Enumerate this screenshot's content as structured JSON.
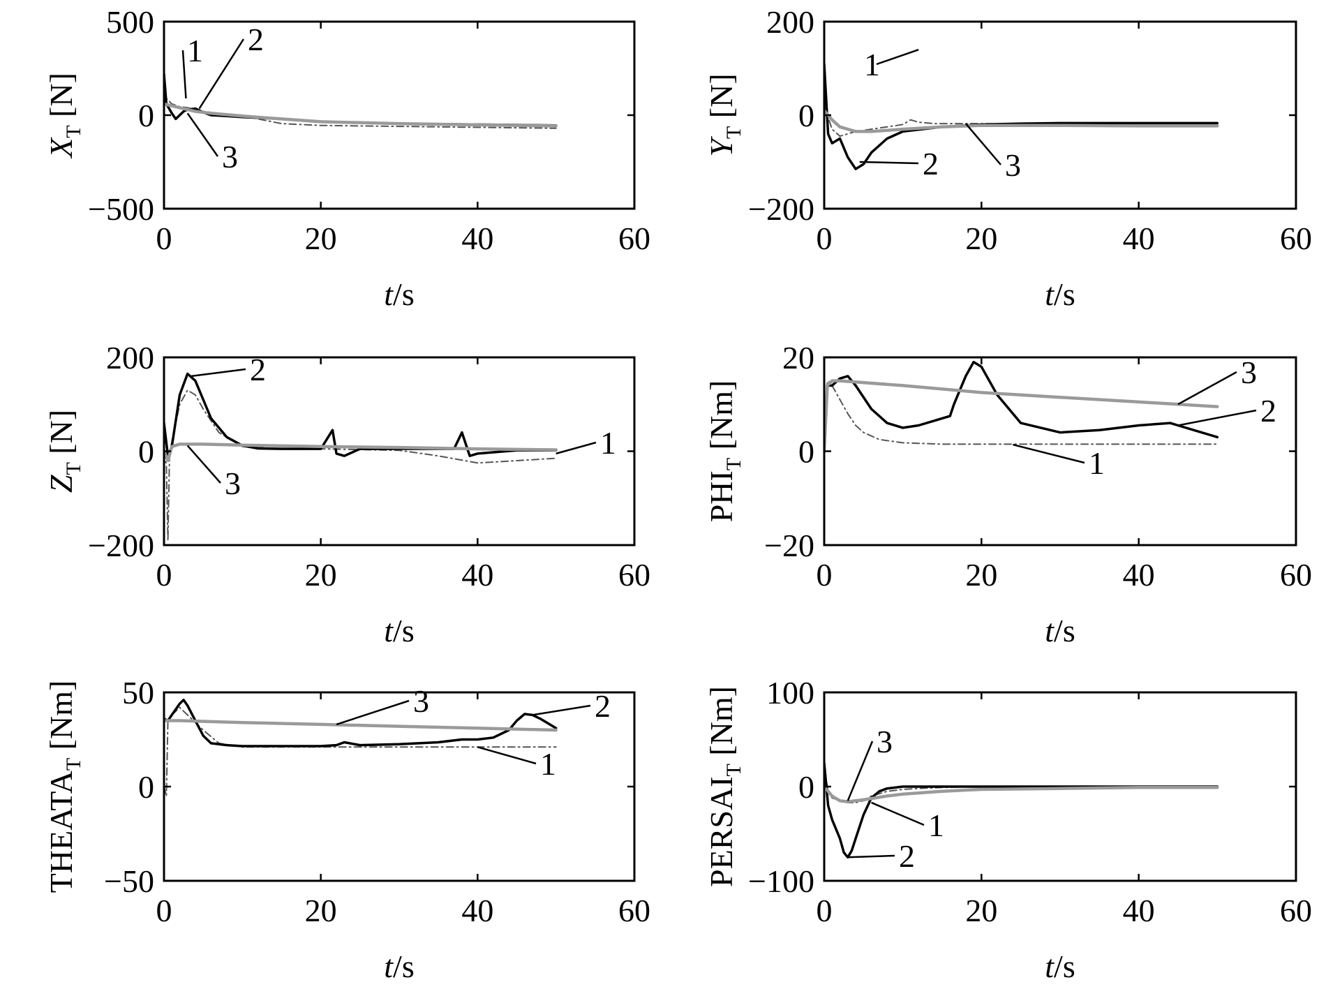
{
  "colors": {
    "curve1": "#555555",
    "curve2": "#000000",
    "curve3": "#9a9a9a"
  },
  "chart_data": [
    {
      "type": "line",
      "ylabel": {
        "main": "X",
        "sub": "T",
        "unit": " [N]",
        "italic": true
      },
      "xlabel": "t/s",
      "xlim": [
        0,
        60
      ],
      "ylim": [
        -500,
        500
      ],
      "xticks": [
        "0",
        "20",
        "40",
        "60"
      ],
      "yticks": [
        "500",
        "0",
        "-500"
      ],
      "series": [
        {
          "id": "1",
          "style": "dashdot",
          "x": [
            0,
            0.3,
            1,
            2,
            3,
            4,
            5,
            7,
            10,
            12,
            15,
            20,
            30,
            40,
            50
          ],
          "y": [
            230,
            90,
            60,
            45,
            40,
            30,
            20,
            10,
            0,
            -20,
            -45,
            -55,
            -60,
            -65,
            -70
          ]
        },
        {
          "id": "2",
          "style": "solid",
          "x": [
            0,
            0.3,
            1,
            1.5,
            2,
            2.5,
            3,
            4,
            5,
            6,
            8,
            10,
            15,
            20,
            30,
            40,
            50
          ],
          "y": [
            220,
            60,
            10,
            -20,
            0,
            20,
            30,
            35,
            15,
            0,
            -5,
            -10,
            -20,
            -35,
            -45,
            -50,
            -55
          ]
        },
        {
          "id": "3",
          "style": "solid",
          "x": [
            0,
            2,
            4,
            6,
            10,
            15,
            20,
            30,
            40,
            50
          ],
          "y": [
            60,
            40,
            20,
            10,
            -5,
            -20,
            -35,
            -45,
            -52,
            -58
          ]
        }
      ],
      "labels": [
        "1",
        "2",
        "3"
      ]
    },
    {
      "type": "line",
      "ylabel": {
        "main": "Y",
        "sub": "T",
        "unit": " [N]",
        "italic": true
      },
      "xlabel": "t/s",
      "xlim": [
        0,
        60
      ],
      "ylim": [
        -200,
        200
      ],
      "xticks": [
        "0",
        "20",
        "40",
        "60"
      ],
      "yticks": [
        "200",
        "0",
        "-200"
      ],
      "series": [
        {
          "id": "1",
          "style": "dashdot",
          "x": [
            0,
            1,
            2,
            3,
            4,
            6,
            8,
            10,
            11,
            12,
            14,
            20,
            30,
            40,
            50
          ],
          "y": [
            20,
            -30,
            -45,
            -40,
            -35,
            -30,
            -25,
            -20,
            -10,
            -15,
            -18,
            -18,
            -20,
            -22,
            -22
          ]
        },
        {
          "id": "2",
          "style": "solid",
          "x": [
            0,
            0.5,
            1,
            2,
            3,
            4,
            5,
            6,
            8,
            10,
            15,
            20,
            25,
            30,
            40,
            50
          ],
          "y": [
            110,
            -40,
            -60,
            -50,
            -90,
            -115,
            -105,
            -80,
            -50,
            -35,
            -25,
            -20,
            -18,
            -17,
            -17,
            -17
          ]
        },
        {
          "id": "3",
          "style": "solid",
          "x": [
            0,
            1,
            2,
            4,
            6,
            10,
            15,
            20,
            30,
            40,
            50
          ],
          "y": [
            10,
            -10,
            -25,
            -35,
            -35,
            -30,
            -25,
            -22,
            -22,
            -23,
            -23
          ]
        }
      ],
      "labels": [
        "1",
        "2",
        "3"
      ]
    },
    {
      "type": "line",
      "ylabel": {
        "main": "Z",
        "sub": "T",
        "unit": " [N]",
        "italic": true
      },
      "xlabel": "t/s",
      "xlim": [
        0,
        60
      ],
      "ylim": [
        -200,
        200
      ],
      "xticks": [
        "0",
        "20",
        "40",
        "60"
      ],
      "yticks": [
        "200",
        "0",
        "-200"
      ],
      "series": [
        {
          "id": "1",
          "style": "dashdot",
          "x": [
            0,
            0.3,
            0.5,
            0.7,
            1,
            2,
            3,
            4,
            5,
            7,
            10,
            15,
            20,
            30,
            35,
            40,
            45,
            50
          ],
          "y": [
            0,
            -30,
            -190,
            -10,
            20,
            100,
            130,
            120,
            90,
            40,
            10,
            5,
            5,
            2,
            -10,
            -25,
            -20,
            -15
          ]
        },
        {
          "id": "2",
          "style": "solid",
          "x": [
            0,
            0.5,
            1,
            2,
            3,
            4,
            5,
            6,
            8,
            10,
            12,
            15,
            20,
            21.5,
            22,
            23,
            25,
            30,
            37,
            38,
            39,
            40,
            45,
            50
          ],
          "y": [
            60,
            -10,
            10,
            120,
            165,
            150,
            110,
            70,
            30,
            12,
            6,
            5,
            5,
            45,
            -5,
            -10,
            5,
            5,
            5,
            40,
            -10,
            -5,
            2,
            2
          ]
        },
        {
          "id": "3",
          "style": "solid",
          "x": [
            0,
            0.5,
            1,
            2,
            5,
            10,
            20,
            30,
            40,
            50
          ],
          "y": [
            0,
            -20,
            10,
            15,
            15,
            13,
            10,
            8,
            5,
            3
          ]
        }
      ],
      "labels": [
        "2",
        "3",
        "1"
      ]
    },
    {
      "type": "line",
      "ylabel": {
        "main": "PHI",
        "sub": "T",
        "unit": " [Nm]",
        "italic": false
      },
      "xlabel": "t/s",
      "xlim": [
        0,
        60
      ],
      "ylim": [
        -20,
        20
      ],
      "xticks": [
        "0",
        "20",
        "40",
        "60"
      ],
      "yticks": [
        "20",
        "0",
        "-20"
      ],
      "series": [
        {
          "id": "1",
          "style": "dashdot",
          "x": [
            0,
            0.3,
            0.5,
            1,
            2,
            3,
            4,
            5,
            7,
            10,
            15,
            20,
            30,
            40,
            50
          ],
          "y": [
            0,
            14,
            15,
            14,
            11,
            8,
            5.5,
            4,
            2.5,
            1.8,
            1.5,
            1.5,
            1.5,
            1.5,
            1.5
          ]
        },
        {
          "id": "2",
          "style": "solid",
          "x": [
            0,
            0.4,
            1,
            2,
            3,
            4,
            6,
            8,
            10,
            12,
            14,
            16,
            16.5,
            17,
            18,
            19,
            20,
            22,
            25,
            30,
            35,
            40,
            44,
            45,
            50
          ],
          "y": [
            0,
            14,
            14,
            15.5,
            16,
            14,
            9,
            6,
            5,
            5.5,
            6.5,
            7.5,
            10,
            12,
            16,
            19,
            18,
            12,
            6,
            4,
            4.5,
            5.5,
            6,
            5.5,
            3
          ]
        },
        {
          "id": "3",
          "style": "solid",
          "x": [
            0,
            0.4,
            1,
            2,
            10,
            20,
            30,
            40,
            50
          ],
          "y": [
            0,
            14,
            15,
            15,
            14,
            12.5,
            11.5,
            10.5,
            9.5
          ]
        }
      ],
      "labels": [
        "3",
        "2",
        "1"
      ]
    },
    {
      "type": "line",
      "ylabel": {
        "main": "THEATA",
        "sub": "T",
        "unit": " [Nm]",
        "italic": false
      },
      "xlabel": "t/s",
      "xlim": [
        0,
        60
      ],
      "ylim": [
        -50,
        50
      ],
      "xticks": [
        "0",
        "20",
        "40",
        "60"
      ],
      "yticks": [
        "50",
        "0",
        "-50"
      ],
      "series": [
        {
          "id": "1",
          "style": "dashdot",
          "x": [
            0,
            0.3,
            0.5,
            1,
            2,
            3,
            5,
            7,
            10,
            20,
            30,
            40,
            50
          ],
          "y": [
            0,
            -5,
            35,
            38,
            42,
            38,
            30,
            23,
            21,
            21,
            21,
            21,
            21
          ]
        },
        {
          "id": "2",
          "style": "solid",
          "x": [
            0,
            0.5,
            1,
            2,
            2.5,
            3,
            4,
            5,
            6,
            8,
            10,
            15,
            20,
            22,
            23,
            25,
            30,
            35,
            38,
            40,
            42,
            44,
            45,
            46,
            47,
            48,
            50
          ],
          "y": [
            36,
            35,
            38,
            44,
            46,
            43,
            35,
            27,
            23,
            22,
            21.5,
            21.5,
            21.5,
            22,
            23.5,
            22,
            22.5,
            23.5,
            25,
            25,
            26,
            30,
            35,
            38.5,
            38,
            36,
            31
          ]
        },
        {
          "id": "3",
          "style": "solid",
          "x": [
            0,
            0.5,
            2,
            10,
            20,
            30,
            40,
            50
          ],
          "y": [
            35,
            35,
            35,
            34,
            33,
            32,
            31,
            30
          ]
        }
      ],
      "labels": [
        "3",
        "2",
        "1"
      ]
    },
    {
      "type": "line",
      "ylabel": {
        "main": "PERSAI",
        "sub": "T",
        "unit": " [Nm]",
        "italic": false
      },
      "xlabel": "t/s",
      "xlim": [
        0,
        60
      ],
      "ylim": [
        -100,
        100
      ],
      "xticks": [
        "0",
        "20",
        "40",
        "60"
      ],
      "yticks": [
        "100",
        "0",
        "-100"
      ],
      "series": [
        {
          "id": "1",
          "style": "dashdot",
          "x": [
            0,
            0.5,
            1,
            2,
            3,
            4,
            5,
            6,
            8,
            10,
            12,
            15,
            20,
            30,
            40,
            50
          ],
          "y": [
            20,
            -5,
            -12,
            -15,
            -17,
            -17,
            -15,
            -10,
            -5,
            -3,
            -2,
            -1,
            0,
            0,
            0,
            0
          ]
        },
        {
          "id": "2",
          "style": "solid",
          "x": [
            0,
            0.5,
            1,
            1.5,
            2,
            2.5,
            3,
            3.5,
            4,
            5,
            6,
            7,
            8,
            10,
            15,
            20,
            30,
            40,
            50
          ],
          "y": [
            25,
            -20,
            -35,
            -45,
            -55,
            -70,
            -75,
            -68,
            -55,
            -30,
            -12,
            -5,
            -2,
            0,
            0,
            0,
            0,
            0,
            0
          ]
        },
        {
          "id": "3",
          "style": "solid",
          "x": [
            0,
            0.5,
            1,
            2,
            3,
            5,
            8,
            10,
            15,
            20,
            30,
            40,
            50
          ],
          "y": [
            0,
            -5,
            -10,
            -15,
            -16,
            -14,
            -10,
            -8,
            -5,
            -3,
            -2,
            -1,
            -1
          ]
        }
      ],
      "labels": [
        "3",
        "1",
        "2"
      ]
    }
  ]
}
